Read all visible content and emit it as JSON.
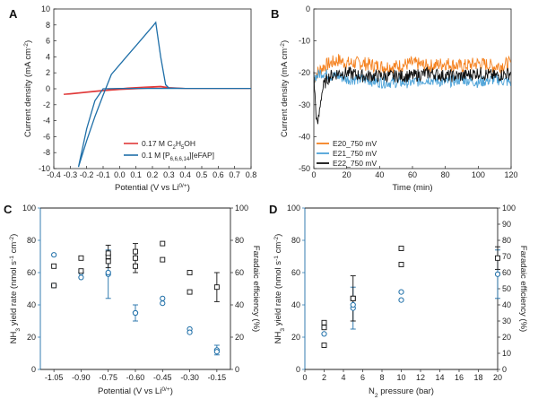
{
  "chart_data": [
    {
      "panel": "A",
      "type": "line",
      "xlabel": "Potential (V vs Li",
      "xlabel_sup": "0/+",
      "xlabel_end": ")",
      "ylabel": "Current density (mA cm",
      "ylabel_sup": "-2",
      "ylabel_end": ")",
      "xlim": [
        -0.4,
        0.8
      ],
      "ylim": [
        -10,
        10
      ],
      "xticks": [
        -0.4,
        -0.3,
        -0.2,
        -0.1,
        0.0,
        0.1,
        0.2,
        0.3,
        0.4,
        0.5,
        0.6,
        0.7,
        0.8
      ],
      "yticks": [
        -10,
        -8,
        -6,
        -4,
        -2,
        0,
        2,
        4,
        6,
        8,
        10
      ],
      "legend_position": "bottom-right",
      "series": [
        {
          "name": "0.17 M C",
          "name_parts": [
            "0.17 M C",
            "2",
            "H",
            "5",
            "OH"
          ],
          "color": "#e03a3a",
          "x": [
            -0.34,
            -0.25,
            -0.15,
            -0.05,
            0.05,
            0.15,
            0.25,
            0.3,
            0.4,
            0.6,
            0.8,
            0.6,
            0.4,
            0.3,
            0.2,
            0.1,
            0.0,
            -0.1,
            -0.2,
            -0.3,
            -0.34
          ],
          "y": [
            -0.7,
            -0.5,
            -0.3,
            -0.1,
            0.1,
            0.2,
            0.3,
            0.15,
            0.05,
            0.05,
            0.05,
            0.05,
            0.05,
            0.1,
            0.1,
            0.0,
            -0.1,
            -0.25,
            -0.45,
            -0.65,
            -0.7
          ]
        },
        {
          "name": "0.1 M [P",
          "name_parts": [
            "0.1 M [P",
            "6,6,6,14",
            "][eFAP]"
          ],
          "color": "#1f6fa8",
          "x": [
            -0.25,
            -0.2,
            -0.15,
            -0.1,
            -0.05,
            0.0,
            0.05,
            0.1,
            0.15,
            0.2,
            0.22,
            0.25,
            0.28,
            0.3,
            0.4,
            0.6,
            0.8,
            0.6,
            0.4,
            0.3,
            0.2,
            0.1,
            0.0,
            -0.1,
            -0.15,
            -0.2,
            -0.25
          ],
          "y": [
            -9.8,
            -6.5,
            -3.5,
            -0.8,
            1.8,
            3.0,
            4.2,
            5.4,
            6.6,
            7.8,
            8.3,
            4.0,
            0.5,
            0.1,
            0.05,
            0.05,
            0.05,
            0.05,
            0.05,
            0.05,
            0.05,
            0.05,
            0.05,
            0.0,
            -1.5,
            -5.0,
            -9.8
          ]
        }
      ]
    },
    {
      "panel": "B",
      "type": "line",
      "xlabel": "Time (min)",
      "ylabel": "Current density (mA cm",
      "ylabel_sup": "-2",
      "ylabel_end": ")",
      "xlim": [
        0,
        120
      ],
      "ylim": [
        -50,
        0
      ],
      "xticks": [
        0,
        20,
        40,
        60,
        80,
        100,
        120
      ],
      "yticks": [
        0,
        -10,
        -20,
        -30,
        -40,
        -50
      ],
      "legend_position": "bottom-left",
      "series": [
        {
          "name": "E20_750 mV",
          "color": "#f58220",
          "x": [
            0,
            1,
            2,
            4,
            6,
            10,
            15,
            20,
            30,
            40,
            50,
            60,
            70,
            80,
            90,
            100,
            110,
            120
          ],
          "y": [
            -22,
            -21,
            -20,
            -19,
            -18,
            -17,
            -16,
            -17,
            -17,
            -18,
            -18,
            -17,
            -18,
            -17,
            -18,
            -17,
            -18,
            -17
          ]
        },
        {
          "name": "E21_750 mV",
          "color": "#4ea3d8",
          "x": [
            0,
            1,
            2,
            4,
            6,
            10,
            15,
            20,
            30,
            40,
            50,
            60,
            70,
            80,
            90,
            100,
            110,
            120
          ],
          "y": [
            -22,
            -21,
            -21,
            -20,
            -20,
            -21,
            -21,
            -22,
            -22,
            -23,
            -23,
            -23,
            -22,
            -23,
            -22,
            -23,
            -22,
            -23
          ]
        },
        {
          "name": "E22_750 mV",
          "color": "#111111",
          "x": [
            0,
            1,
            2,
            3,
            4,
            5,
            6,
            8,
            10,
            15,
            20,
            30,
            40,
            50,
            60,
            70,
            80,
            90,
            100,
            110,
            120
          ],
          "y": [
            -21,
            -30,
            -37,
            -34,
            -29,
            -26,
            -24,
            -22,
            -21,
            -20,
            -20,
            -21,
            -21,
            -21,
            -21,
            -20,
            -21,
            -21,
            -20,
            -21,
            -20
          ]
        }
      ]
    },
    {
      "panel": "C",
      "type": "scatter",
      "xlabel": "Potential (V vs Li",
      "xlabel_sup": "0/+",
      "xlabel_end": ")",
      "ylabel_left": "NH",
      "ylabel_left_parts": [
        "NH",
        "3",
        " yield rate (nmol s",
        "-1",
        " cm",
        "-2",
        ")"
      ],
      "ylabel_right": "Faradaic efficiency (%)",
      "categories": [
        "-1.05",
        "-0.90",
        "-0.75",
        "-0.60",
        "-0.45",
        "-0.30",
        "-0.15"
      ],
      "x": [
        -1.05,
        -0.9,
        -0.75,
        -0.6,
        -0.45,
        -0.3,
        -0.15
      ],
      "ylim_left": [
        0,
        100
      ],
      "ylim_right": [
        0,
        100
      ],
      "yticks_left": [
        0,
        20,
        40,
        60,
        80,
        100
      ],
      "yticks_right": [
        0,
        20,
        40,
        60,
        80,
        100
      ],
      "left_color": "#1f6fa8",
      "right_color": "#111111",
      "yield_points": [
        [
          -1.05,
          71
        ],
        [
          -1.05,
          52
        ],
        [
          -0.9,
          57
        ],
        [
          -0.9,
          60
        ],
        [
          -0.75,
          60
        ],
        [
          -0.6,
          35
        ],
        [
          -0.45,
          44
        ],
        [
          -0.45,
          41
        ],
        [
          -0.3,
          25
        ],
        [
          -0.3,
          23
        ],
        [
          -0.15,
          11
        ]
      ],
      "yield_means": [
        [
          -0.75,
          59,
          15
        ],
        [
          -0.6,
          35,
          5
        ],
        [
          -0.15,
          12,
          3
        ]
      ],
      "fe_points": [
        [
          -1.05,
          64
        ],
        [
          -1.05,
          52
        ],
        [
          -0.9,
          69
        ],
        [
          -0.9,
          61
        ],
        [
          -0.75,
          72
        ],
        [
          -0.75,
          67
        ],
        [
          -0.6,
          73
        ],
        [
          -0.6,
          64
        ],
        [
          -0.45,
          78
        ],
        [
          -0.45,
          68
        ],
        [
          -0.3,
          60
        ],
        [
          -0.3,
          48
        ]
      ],
      "fe_means": [
        [
          -0.75,
          70,
          7
        ],
        [
          -0.6,
          69,
          9
        ],
        [
          -0.15,
          51,
          9
        ]
      ]
    },
    {
      "panel": "D",
      "type": "scatter",
      "xlabel": "N",
      "xlabel_parts": [
        "N",
        "2",
        " pressure (bar)"
      ],
      "ylabel_left": "NH",
      "ylabel_left_parts": [
        "NH",
        "3",
        " yield rate (nmol s",
        "-1",
        " cm",
        "-2",
        ")"
      ],
      "ylabel_right": "Faradaic efficiency (%)",
      "xlim": [
        0,
        20
      ],
      "xticks": [
        0,
        2,
        4,
        6,
        8,
        10,
        12,
        14,
        16,
        18,
        20
      ],
      "ylim_left": [
        0,
        100
      ],
      "ylim_right": [
        0,
        100
      ],
      "yticks_left": [
        0,
        20,
        40,
        60,
        80,
        100
      ],
      "yticks_right": [
        0,
        10,
        20,
        30,
        40,
        50,
        60,
        70,
        80,
        90,
        100
      ],
      "left_color": "#1f6fa8",
      "right_color": "#111111",
      "yield_points": [
        [
          2,
          26
        ],
        [
          2,
          22
        ],
        [
          5,
          40
        ],
        [
          10,
          48
        ],
        [
          10,
          43
        ]
      ],
      "yield_means": [
        [
          5,
          38,
          13
        ],
        [
          20,
          59,
          15
        ]
      ],
      "fe_points": [
        [
          2,
          29
        ],
        [
          2,
          26
        ],
        [
          2,
          15
        ],
        [
          5,
          44
        ],
        [
          10,
          75
        ],
        [
          10,
          65
        ]
      ],
      "fe_means": [
        [
          5,
          44,
          14
        ],
        [
          20,
          69,
          7
        ]
      ]
    }
  ]
}
